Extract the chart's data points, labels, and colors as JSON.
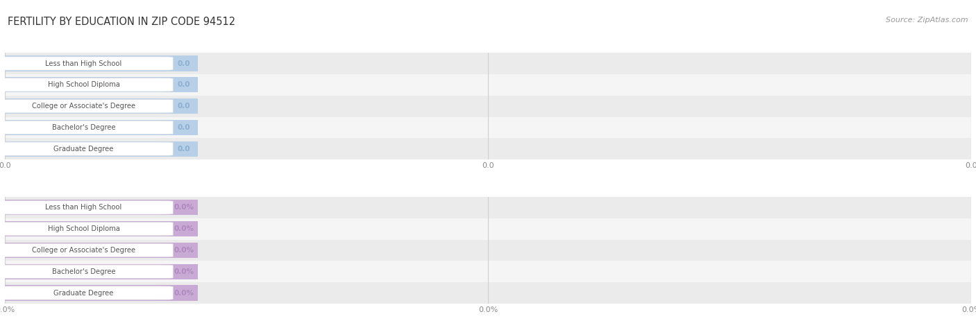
{
  "title": "FERTILITY BY EDUCATION IN ZIP CODE 94512",
  "source": "Source: ZipAtlas.com",
  "categories": [
    "Less than High School",
    "High School Diploma",
    "College or Associate's Degree",
    "Bachelor's Degree",
    "Graduate Degree"
  ],
  "values_top": [
    0.0,
    0.0,
    0.0,
    0.0,
    0.0
  ],
  "values_bottom": [
    0.0,
    0.0,
    0.0,
    0.0,
    0.0
  ],
  "top_bar_color": "#b8cfe8",
  "top_text_color": "#555555",
  "top_value_color": "#8aafd0",
  "bottom_bar_color": "#c9aad4",
  "bottom_text_color": "#555555",
  "bottom_value_color": "#b088c0",
  "top_tick_label": "0.0",
  "bottom_tick_label": "0.0%",
  "background": "#ffffff",
  "row_bg_even": "#ebebeb",
  "row_bg_odd": "#f5f5f5",
  "title_color": "#333333",
  "source_color": "#999999",
  "grid_color": "#d0d0d0",
  "pill_bg": "#ffffff",
  "pill_edge": "#dddddd"
}
